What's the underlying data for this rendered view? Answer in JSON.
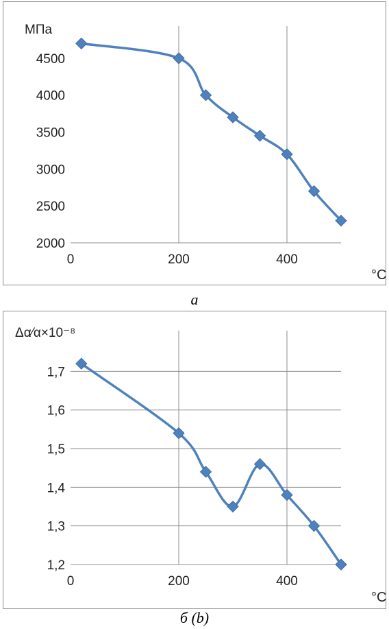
{
  "chart_data": [
    {
      "type": "line",
      "panel_caption": "a",
      "ylabel": "МПа",
      "xlabel": "°C",
      "xlim": [
        0,
        500
      ],
      "ylim": [
        2000,
        4750
      ],
      "xticks": [
        "0",
        "200",
        "400"
      ],
      "xtick_values": [
        0,
        200,
        400
      ],
      "yticks": [
        "2000",
        "2500",
        "3000",
        "3500",
        "4000",
        "4500"
      ],
      "ytick_values": [
        2000,
        2500,
        3000,
        3500,
        4000,
        4500
      ],
      "grid": "vertical",
      "color": "#4f81bd",
      "marker": "diamond",
      "smooth": true,
      "series": [
        {
          "x": [
            20,
            200,
            250,
            300,
            350,
            400,
            450,
            500
          ],
          "y": [
            4700,
            4500,
            4000,
            3700,
            3450,
            3200,
            2700,
            2300
          ]
        }
      ]
    },
    {
      "type": "line",
      "panel_caption": "б (b)",
      "ylabel": "Δα⁄α×10⁻⁸",
      "xlabel": "°C",
      "xlim": [
        0,
        500
      ],
      "ylim": [
        1.2,
        1.77
      ],
      "xticks": [
        "0",
        "200",
        "400"
      ],
      "xtick_values": [
        0,
        200,
        400
      ],
      "yticks": [
        "1,2",
        "1,3",
        "1,4",
        "1,5",
        "1,6",
        "1,7"
      ],
      "ytick_values": [
        1.2,
        1.3,
        1.4,
        1.5,
        1.6,
        1.7
      ],
      "grid": "both",
      "color": "#4f81bd",
      "marker": "diamond",
      "smooth": true,
      "series": [
        {
          "x": [
            20,
            200,
            250,
            300,
            350,
            400,
            450,
            500
          ],
          "y": [
            1.72,
            1.54,
            1.44,
            1.35,
            1.46,
            1.38,
            1.3,
            1.2
          ]
        }
      ]
    }
  ]
}
